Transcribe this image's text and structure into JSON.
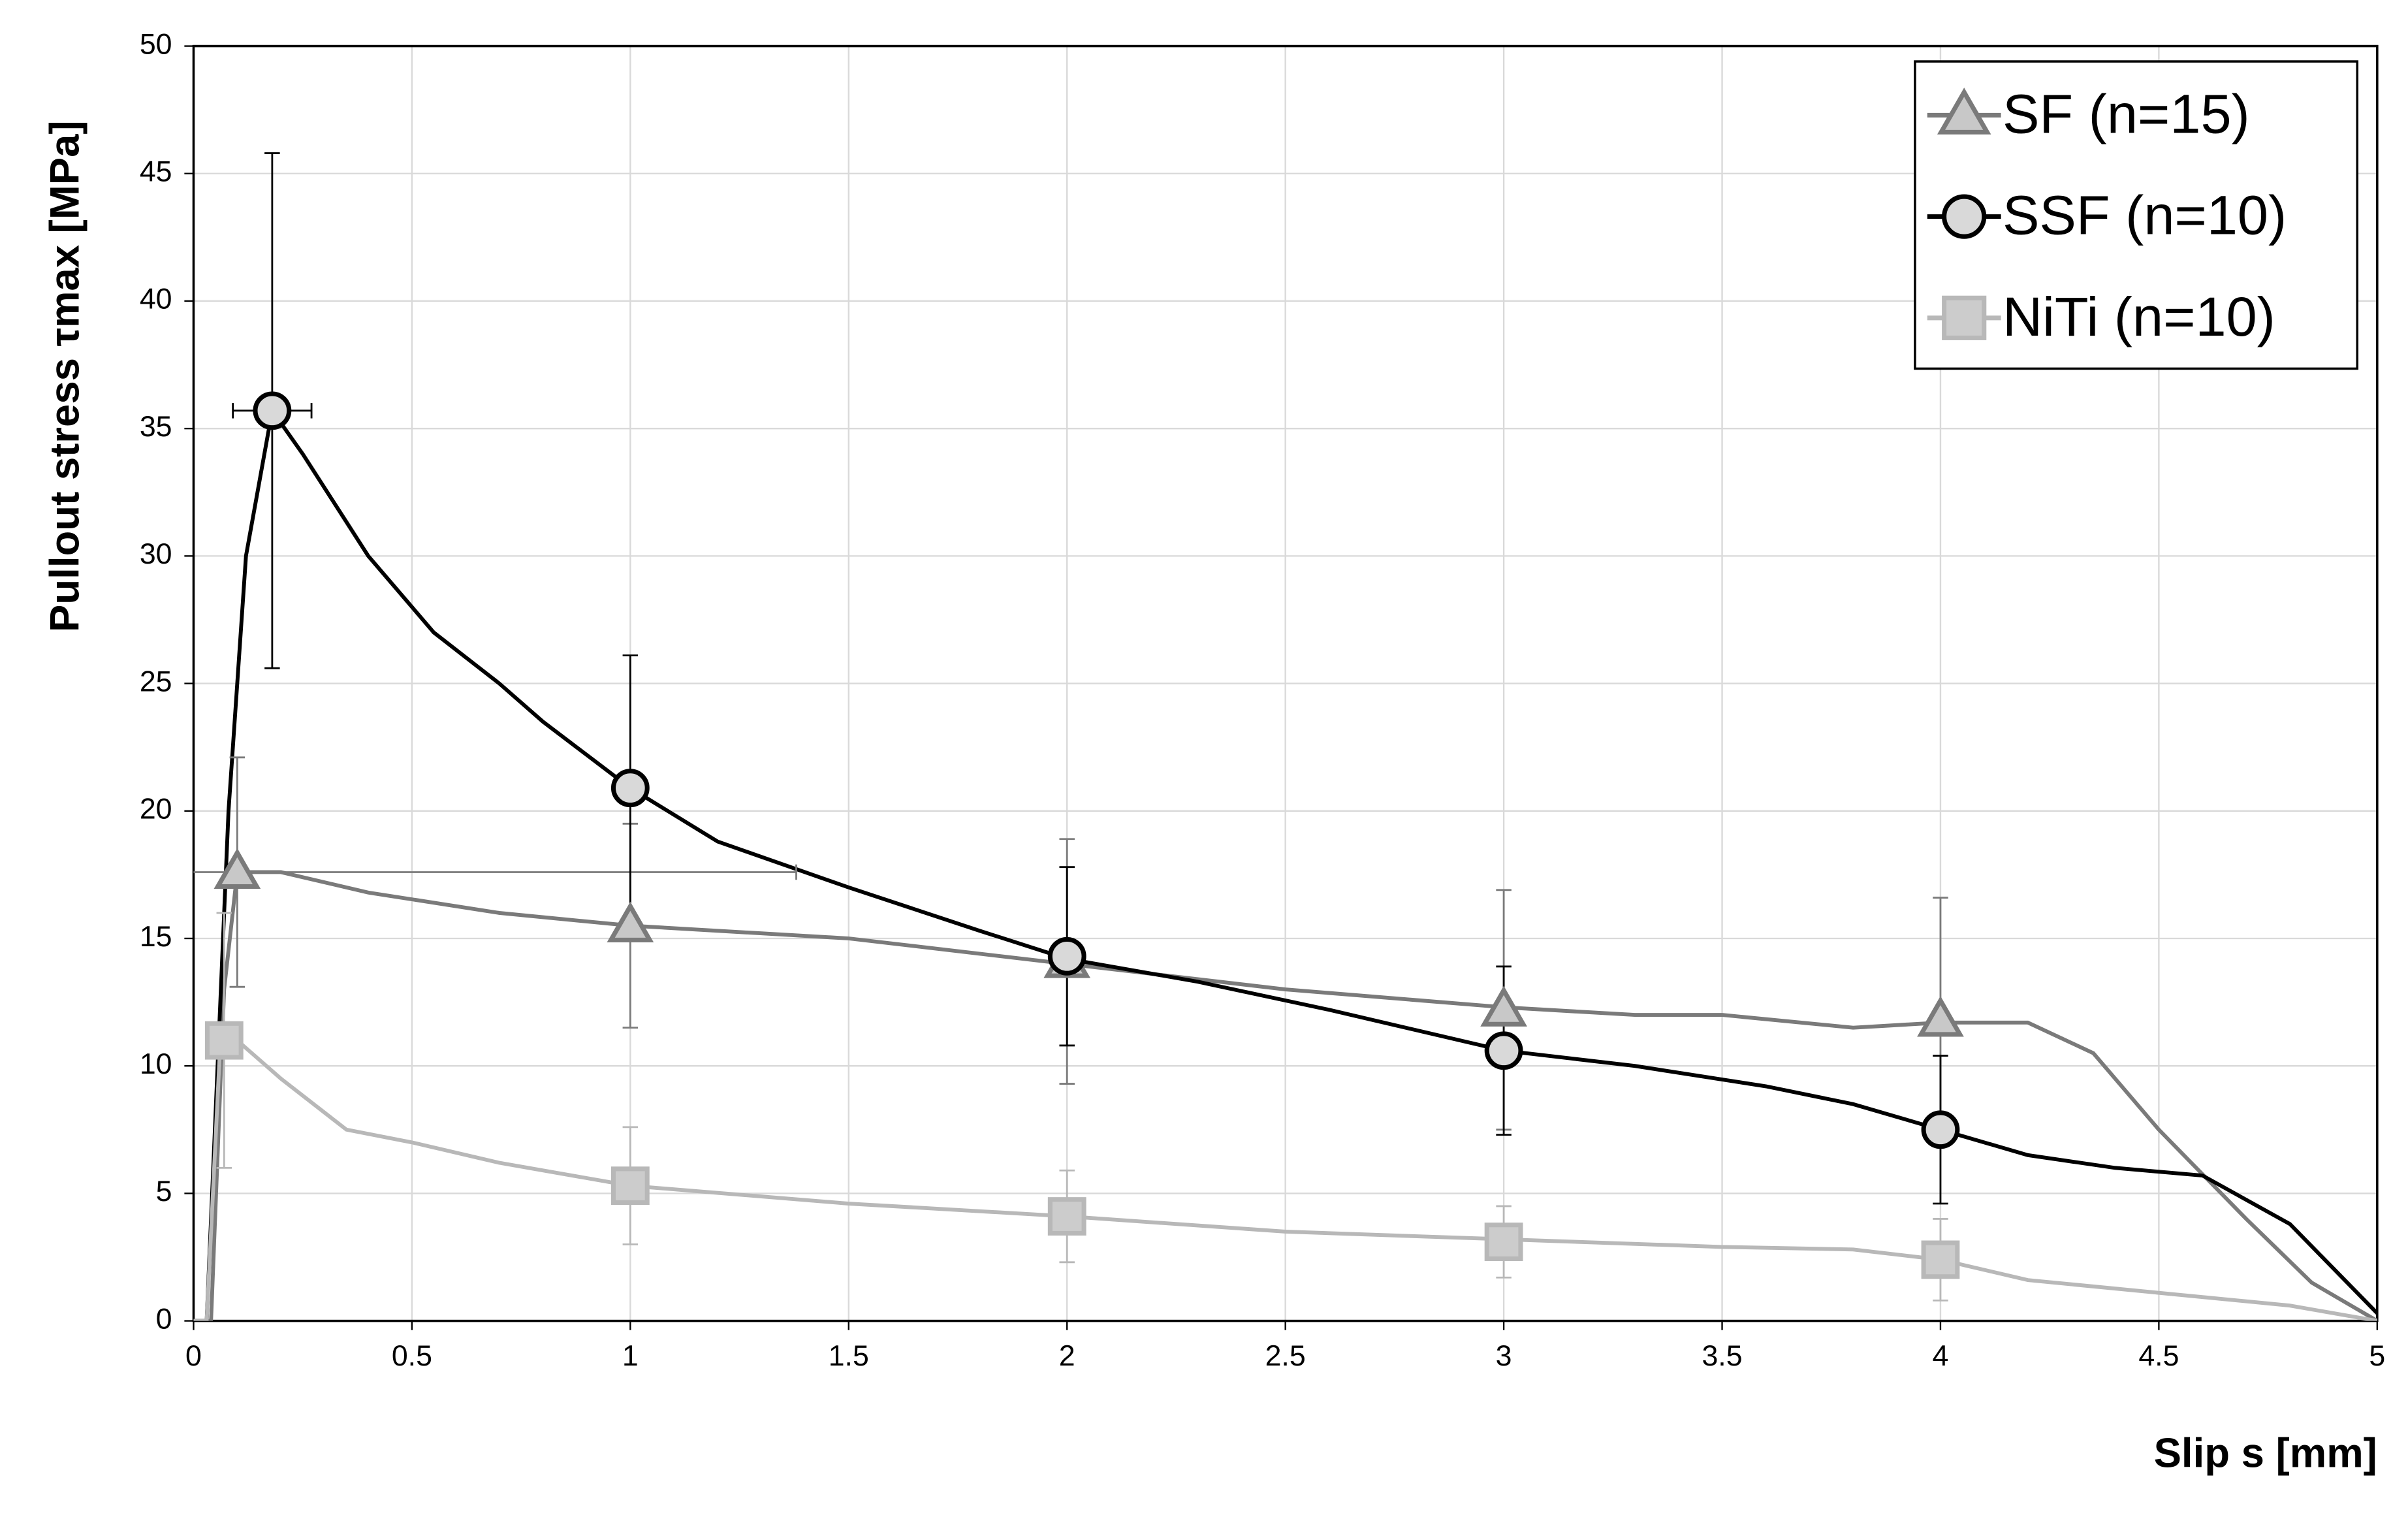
{
  "chart_data": {
    "type": "line",
    "x_label": "Slip s [mm]",
    "y_label": "Pullout stress τmax [MPa]",
    "xlim": [
      0,
      5
    ],
    "ylim": [
      0,
      50
    ],
    "xticks": [
      0,
      0.5,
      1,
      1.5,
      2,
      2.5,
      3,
      3.5,
      4,
      4.5,
      5
    ],
    "yticks": [
      0,
      5,
      10,
      15,
      20,
      25,
      30,
      35,
      40,
      45,
      50
    ],
    "grid": true,
    "legend": "upper right",
    "series": [
      {
        "name": "SF (n=15)",
        "color": "#7a7a7a",
        "marker": "triangle",
        "marker_fill": "#c8c8c8",
        "x": [
          0,
          0.04,
          0.07,
          0.1,
          0.2,
          0.4,
          0.7,
          1,
          1.5,
          2,
          2.5,
          3,
          3.3,
          3.5,
          3.8,
          4,
          4.2,
          4.35,
          4.5,
          4.7,
          4.85,
          5
        ],
        "values": [
          0,
          0,
          13,
          17.6,
          17.6,
          16.8,
          16,
          15.5,
          15,
          14,
          13,
          12.3,
          12,
          12,
          11.5,
          11.7,
          11.7,
          10.5,
          7.5,
          4,
          1.5,
          0
        ],
        "points": {
          "x": [
            0.1,
            1,
            2,
            3,
            4
          ],
          "values": [
            17.6,
            15.5,
            14.1,
            12.2,
            11.8
          ],
          "errors": [
            4.5,
            4,
            4.8,
            4.7,
            4.8
          ],
          "x_errors": [
            1.28,
            null,
            null,
            null,
            null
          ]
        }
      },
      {
        "name": "SSF (n=10)",
        "color": "#000000",
        "marker": "circle",
        "marker_fill": "#d9d9d9",
        "x": [
          0,
          0.03,
          0.08,
          0.12,
          0.18,
          0.25,
          0.4,
          0.55,
          0.7,
          0.8,
          1,
          1.2,
          1.5,
          1.8,
          2,
          2.3,
          2.6,
          3,
          3.3,
          3.6,
          3.8,
          4,
          4.2,
          4.4,
          4.6,
          4.8,
          5
        ],
        "values": [
          0,
          0,
          20,
          30,
          35.7,
          34,
          30,
          27,
          25,
          23.5,
          20.9,
          18.8,
          17,
          15.3,
          14.2,
          13.3,
          12.2,
          10.6,
          10,
          9.2,
          8.5,
          7.5,
          6.5,
          6,
          5.7,
          3.8,
          0.3
        ],
        "points": {
          "x": [
            0.18,
            1,
            2,
            3,
            4
          ],
          "values": [
            35.7,
            20.9,
            14.3,
            10.6,
            7.5
          ],
          "errors": [
            10.1,
            5.2,
            3.5,
            3.3,
            2.9
          ],
          "x_errors": [
            0.09,
            null,
            null,
            null,
            null
          ]
        }
      },
      {
        "name": "NiTi (n=10)",
        "color": "#b8b8b8",
        "marker": "square",
        "marker_fill": "#cccccc",
        "x": [
          0,
          0.03,
          0.06,
          0.1,
          0.2,
          0.35,
          0.5,
          0.7,
          1,
          1.5,
          2,
          2.5,
          3,
          3.5,
          3.8,
          4,
          4.2,
          4.5,
          4.8,
          5
        ],
        "values": [
          0,
          0,
          10.5,
          11,
          9.5,
          7.5,
          7,
          6.2,
          5.3,
          4.6,
          4.1,
          3.5,
          3.2,
          2.9,
          2.8,
          2.4,
          1.6,
          1.1,
          0.6,
          0
        ],
        "points": {
          "x": [
            0.07,
            1,
            2,
            3,
            4
          ],
          "values": [
            11,
            5.3,
            4.1,
            3.1,
            2.4
          ],
          "errors": [
            5,
            2.3,
            1.8,
            1.4,
            1.6
          ],
          "x_errors": [
            null,
            null,
            null,
            null,
            null
          ]
        }
      }
    ]
  }
}
